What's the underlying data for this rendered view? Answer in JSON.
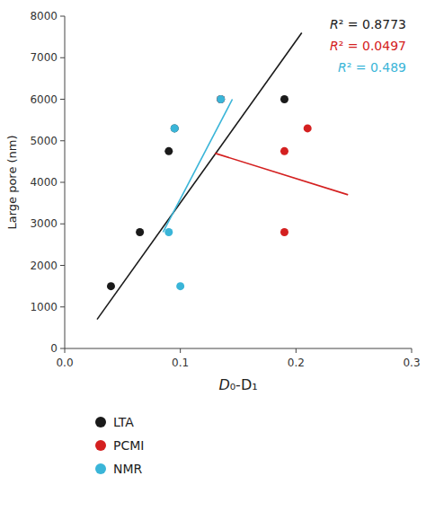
{
  "chart_data": {
    "type": "scatter",
    "xlabel": "D₀-D₁",
    "ylabel": "Large pore (nm)",
    "xlim": [
      0,
      0.3
    ],
    "ylim": [
      0,
      8000
    ],
    "xticks": [
      {
        "value": 0,
        "label": "0.0"
      },
      0.1,
      0.2,
      0.3
    ],
    "yticks": [
      0,
      1000,
      2000,
      3000,
      4000,
      5000,
      6000,
      7000,
      8000
    ],
    "grid": false,
    "legend": "bottom",
    "series": [
      {
        "name": "LTA",
        "color": "#1a1a1a",
        "marker": "circle",
        "x": [
          0.04,
          0.065,
          0.09,
          0.095,
          0.135,
          0.19
        ],
        "values": [
          1500,
          2800,
          4750,
          5300,
          6000,
          6000
        ],
        "trend": {
          "x": [
            0.028,
            0.205
          ],
          "values": [
            700,
            7600
          ]
        }
      },
      {
        "name": "PCMI",
        "color": "#d42020",
        "marker": "circle",
        "x": [
          0.135,
          0.19,
          0.21,
          0.19
        ],
        "values": [
          6000,
          2800,
          5300,
          4750
        ],
        "trend": {
          "x": [
            0.13,
            0.245
          ],
          "values": [
            4700,
            3700
          ]
        }
      },
      {
        "name": "NMR",
        "color": "#3ab5d8",
        "marker": "circle",
        "x": [
          0.09,
          0.095,
          0.1,
          0.135
        ],
        "values": [
          2800,
          5300,
          1500,
          6000
        ],
        "trend": {
          "x": [
            0.085,
            0.145
          ],
          "values": [
            2800,
            6000
          ]
        }
      }
    ],
    "annotations": [
      {
        "text": "R² = 0.8773",
        "color": "#1a1a1a"
      },
      {
        "text": "R² = 0.0497",
        "color": "#d42020"
      },
      {
        "text": "R² = 0.489",
        "color": "#3ab5d8"
      }
    ]
  }
}
